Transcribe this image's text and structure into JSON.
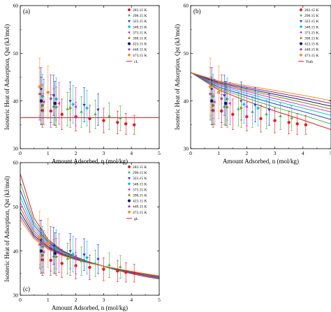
{
  "figure": {
    "xlabel": "Amount Adsorbed, n (mol/kg)",
    "ylabel": "Isosteric Heat of Adsorption, Qst (kJ/mol)"
  },
  "series_styles": [
    {
      "name": "283.15 K",
      "color": "#e41a1c",
      "marker": "circle"
    },
    {
      "name": "298.15 K",
      "color": "#3cb44b",
      "marker": "triangle-up"
    },
    {
      "name": "323.15 K",
      "color": "#2533d8",
      "marker": "triangle-down"
    },
    {
      "name": "348.15 K",
      "color": "#00c8d8",
      "marker": "diamond"
    },
    {
      "name": "373.15 K",
      "color": "#e026d8",
      "marker": "triangle-left"
    },
    {
      "name": "398.15 K",
      "color": "#808000",
      "marker": "triangle-right"
    },
    {
      "name": "423.15 K",
      "color": "#0c1a6e",
      "marker": "hexagon"
    },
    {
      "name": "448.15 K",
      "color": "#8e2a99",
      "marker": "star"
    },
    {
      "name": "473.15 K",
      "color": "#ff8c1a",
      "marker": "pentagon"
    }
  ],
  "chart_data": [
    {
      "type": "scatter",
      "panel_label": "(a)",
      "model_name": "cL",
      "xlim": [
        0,
        5
      ],
      "ylim": [
        30,
        60
      ],
      "xticks": [
        0,
        1,
        2,
        3,
        4,
        5
      ],
      "yticks": [
        30,
        40,
        50,
        60
      ],
      "legend": "top-right",
      "model_curves": [
        {
          "name": "cL",
          "color": "#d7191c",
          "x": [
            0,
            5
          ],
          "y": [
            36.5,
            36.5
          ]
        }
      ]
    },
    {
      "type": "scatter",
      "panel_label": "(b)",
      "model_name": "Toth",
      "xlim": [
        0,
        5
      ],
      "ylim": [
        30,
        60
      ],
      "xticks": [
        0,
        1,
        2,
        3,
        4,
        5
      ],
      "yticks": [
        30,
        40,
        50,
        60
      ],
      "legend": "top-right",
      "model_curves": [
        {
          "name": "283.15 K",
          "color": "#e41a1c",
          "x": [
            0,
            1,
            2,
            3,
            4,
            5
          ],
          "y": [
            46.0,
            42.3,
            40.0,
            37.9,
            36.0,
            34.0
          ]
        },
        {
          "name": "298.15 K",
          "color": "#3cb44b",
          "x": [
            0,
            1,
            2,
            3,
            4,
            5
          ],
          "y": [
            46.0,
            42.6,
            40.6,
            38.7,
            37.0,
            35.2
          ]
        },
        {
          "name": "323.15 K",
          "color": "#2533d8",
          "x": [
            0,
            1,
            2,
            3,
            4,
            5
          ],
          "y": [
            46.0,
            42.9,
            41.1,
            39.4,
            37.8,
            36.1
          ]
        },
        {
          "name": "348.15 K",
          "color": "#00c8d8",
          "x": [
            0,
            1,
            2,
            3,
            4,
            5
          ],
          "y": [
            46.0,
            43.2,
            41.6,
            40.0,
            38.5,
            37.0
          ]
        },
        {
          "name": "373.15 K",
          "color": "#e026d8",
          "x": [
            0,
            1,
            2,
            3,
            4,
            5
          ],
          "y": [
            46.0,
            43.4,
            42.0,
            40.5,
            39.1,
            37.7
          ]
        },
        {
          "name": "398.15 K",
          "color": "#808000",
          "x": [
            0,
            1,
            2,
            3,
            4,
            5
          ],
          "y": [
            46.0,
            43.6,
            42.3,
            41.0,
            39.7,
            38.3
          ]
        },
        {
          "name": "423.15 K",
          "color": "#0c1a6e",
          "x": [
            0,
            1,
            2,
            3,
            4,
            5
          ],
          "y": [
            46.0,
            43.8,
            42.6,
            41.4,
            40.2,
            38.9
          ]
        },
        {
          "name": "448.15 K",
          "color": "#8e2a99",
          "x": [
            0,
            1,
            2,
            3,
            4,
            5
          ],
          "y": [
            46.0,
            44.0,
            42.9,
            41.8,
            40.7,
            39.5
          ]
        },
        {
          "name": "473.15 K",
          "color": "#ff8c1a",
          "x": [
            0,
            1,
            2,
            3,
            4,
            5
          ],
          "y": [
            46.0,
            44.2,
            43.2,
            42.2,
            41.2,
            40.1
          ]
        }
      ]
    },
    {
      "type": "scatter",
      "panel_label": "(c)",
      "model_name": "gL",
      "xlim": [
        0,
        5
      ],
      "ylim": [
        30,
        60
      ],
      "xticks": [
        0,
        1,
        2,
        3,
        4,
        5
      ],
      "yticks": [
        30,
        40,
        50,
        60
      ],
      "legend": "top-right",
      "model_curves": [
        {
          "name": "283.15 K",
          "color": "#e41a1c",
          "x": [
            0,
            0.5,
            1,
            1.5,
            2,
            2.5,
            3,
            3.5,
            4,
            4.5,
            5
          ],
          "y": [
            57.5,
            47.4,
            42.6,
            40.2,
            38.7,
            37.5,
            36.5,
            35.6,
            34.9,
            34.2,
            33.7
          ]
        },
        {
          "name": "298.15 K",
          "color": "#3cb44b",
          "x": [
            0,
            0.5,
            1,
            1.5,
            2,
            2.5,
            3,
            3.5,
            4,
            4.5,
            5
          ],
          "y": [
            55.5,
            46.5,
            42.3,
            40.1,
            38.6,
            37.5,
            36.5,
            35.7,
            35.0,
            34.4,
            33.8
          ]
        },
        {
          "name": "323.15 K",
          "color": "#2533d8",
          "x": [
            0,
            0.5,
            1,
            1.5,
            2,
            2.5,
            3,
            3.5,
            4,
            4.5,
            5
          ],
          "y": [
            53.8,
            45.8,
            42.0,
            40.0,
            38.6,
            37.5,
            36.6,
            35.8,
            35.1,
            34.5,
            33.9
          ]
        },
        {
          "name": "348.15 K",
          "color": "#00c8d8",
          "x": [
            0,
            0.5,
            1,
            1.5,
            2,
            2.5,
            3,
            3.5,
            4,
            4.5,
            5
          ],
          "y": [
            52.3,
            45.1,
            41.7,
            39.8,
            38.5,
            37.5,
            36.6,
            35.8,
            35.2,
            34.6,
            34.0
          ]
        },
        {
          "name": "373.15 K",
          "color": "#e026d8",
          "x": [
            0,
            0.5,
            1,
            1.5,
            2,
            2.5,
            3,
            3.5,
            4,
            4.5,
            5
          ],
          "y": [
            51.0,
            44.5,
            41.4,
            39.6,
            38.4,
            37.4,
            36.6,
            35.9,
            35.2,
            34.6,
            34.1
          ]
        },
        {
          "name": "398.15 K",
          "color": "#808000",
          "x": [
            0,
            0.5,
            1,
            1.5,
            2,
            2.5,
            3,
            3.5,
            4,
            4.5,
            5
          ],
          "y": [
            49.8,
            44.0,
            41.1,
            39.5,
            38.3,
            37.4,
            36.6,
            35.9,
            35.3,
            34.7,
            34.2
          ]
        },
        {
          "name": "423.15 K",
          "color": "#0c1a6e",
          "x": [
            0,
            0.5,
            1,
            1.5,
            2,
            2.5,
            3,
            3.5,
            4,
            4.5,
            5
          ],
          "y": [
            48.8,
            43.5,
            40.9,
            39.3,
            38.2,
            37.3,
            36.6,
            35.9,
            35.3,
            34.8,
            34.3
          ]
        },
        {
          "name": "448.15 K",
          "color": "#8e2a99",
          "x": [
            0,
            0.5,
            1,
            1.5,
            2,
            2.5,
            3,
            3.5,
            4,
            4.5,
            5
          ],
          "y": [
            47.9,
            43.1,
            40.6,
            39.2,
            38.1,
            37.3,
            36.6,
            36.0,
            35.4,
            34.8,
            34.3
          ]
        },
        {
          "name": "473.15 K",
          "color": "#ff8c1a",
          "x": [
            0,
            0.5,
            1,
            1.5,
            2,
            2.5,
            3,
            3.5,
            4,
            4.5,
            5
          ],
          "y": [
            47.1,
            42.7,
            40.4,
            39.0,
            38.0,
            37.2,
            36.6,
            36.0,
            35.4,
            34.9,
            34.4
          ]
        }
      ]
    }
  ],
  "experimental_data": [
    {
      "name": "283.15 K",
      "x": [
        0.8,
        1.1,
        1.5,
        2.0,
        2.5,
        3.0,
        3.5,
        3.8,
        4.1
      ],
      "y": [
        38.0,
        37.9,
        37.2,
        36.7,
        36.3,
        35.9,
        35.5,
        35.2,
        35.0
      ],
      "err": [
        3.5,
        3.4,
        3.2,
        3.0,
        2.8,
        2.6,
        2.4,
        2.2,
        2.0
      ]
    },
    {
      "name": "298.15 K",
      "x": [
        0.8,
        1.2,
        1.7,
        2.2,
        2.7,
        3.2,
        3.6
      ],
      "y": [
        39.2,
        38.8,
        38.3,
        37.7,
        37.2,
        36.8,
        36.4
      ],
      "err": [
        4.0,
        3.8,
        3.5,
        3.2,
        3.0,
        2.8,
        2.6
      ]
    },
    {
      "name": "323.15 K",
      "x": [
        0.75,
        1.2,
        1.8,
        2.3,
        2.8
      ],
      "y": [
        42.5,
        41.2,
        40.0,
        39.2,
        38.2
      ],
      "err": [
        4.5,
        4.2,
        4.0,
        3.6,
        3.3
      ]
    },
    {
      "name": "348.15 K",
      "x": [
        0.8,
        1.3,
        1.9,
        2.4
      ],
      "y": [
        41.0,
        40.4,
        39.3,
        38.5
      ],
      "err": [
        4.6,
        4.4,
        4.0,
        3.7
      ]
    },
    {
      "name": "373.15 K",
      "x": [
        0.85,
        1.4,
        2.0
      ],
      "y": [
        39.8,
        39.5,
        38.8
      ],
      "err": [
        4.8,
        4.4,
        4.0
      ]
    },
    {
      "name": "398.15 K",
      "x": [
        0.8,
        1.3,
        1.8
      ],
      "y": [
        39.0,
        38.7,
        38.5
      ],
      "err": [
        4.5,
        4.2,
        4.0
      ]
    },
    {
      "name": "423.15 K",
      "x": [
        0.75,
        1.25
      ],
      "y": [
        40.0,
        39.5
      ],
      "err": [
        5.0,
        4.6
      ]
    },
    {
      "name": "448.15 K",
      "x": [
        0.7,
        1.1
      ],
      "y": [
        41.5,
        40.5
      ],
      "err": [
        5.5,
        5.0
      ]
    },
    {
      "name": "473.15 K",
      "x": [
        0.7,
        1.0
      ],
      "y": [
        43.0,
        41.8
      ],
      "err": [
        6.0,
        5.5
      ]
    }
  ]
}
